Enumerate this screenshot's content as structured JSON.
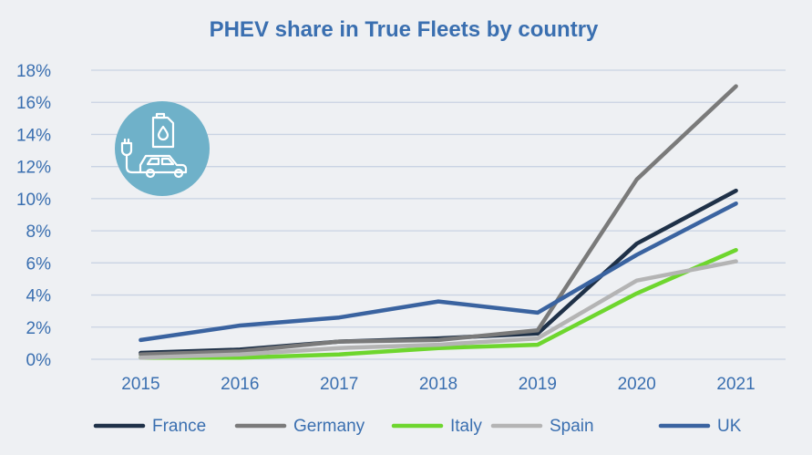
{
  "chart_data": {
    "type": "line",
    "title": "PHEV share in True Fleets by country",
    "xlabel": "",
    "ylabel": "",
    "x": [
      "2015",
      "2016",
      "2017",
      "2018",
      "2019",
      "2020",
      "2021"
    ],
    "ylim": [
      0,
      18
    ],
    "yticks": [
      "0%",
      "2%",
      "4%",
      "6%",
      "8%",
      "10%",
      "12%",
      "14%",
      "16%",
      "18%"
    ],
    "grid": "horizontal",
    "legend_position": "bottom",
    "series": [
      {
        "name": "France",
        "color": "#1f3148",
        "values": [
          0.4,
          0.6,
          1.1,
          1.3,
          1.6,
          7.2,
          10.5
        ]
      },
      {
        "name": "Germany",
        "color": "#7a7a7a",
        "values": [
          0.3,
          0.5,
          1.1,
          1.2,
          1.8,
          11.2,
          17.0
        ]
      },
      {
        "name": "Italy",
        "color": "#6ed62e",
        "values": [
          0.1,
          0.1,
          0.3,
          0.7,
          0.9,
          4.1,
          6.8
        ]
      },
      {
        "name": "Spain",
        "color": "#b4b4b4",
        "values": [
          0.1,
          0.3,
          0.7,
          0.9,
          1.3,
          4.9,
          6.1
        ]
      },
      {
        "name": "UK",
        "color": "#3a63a0",
        "values": [
          1.2,
          2.1,
          2.6,
          3.6,
          2.9,
          6.5,
          9.7
        ]
      }
    ],
    "colors": {
      "title": "#3a6fb0",
      "axis_text": "#3a6fb0",
      "grid": "#c9d3e3",
      "badge": "#6fb1c9"
    },
    "icon": "phev-car-fuel-plug-icon"
  }
}
